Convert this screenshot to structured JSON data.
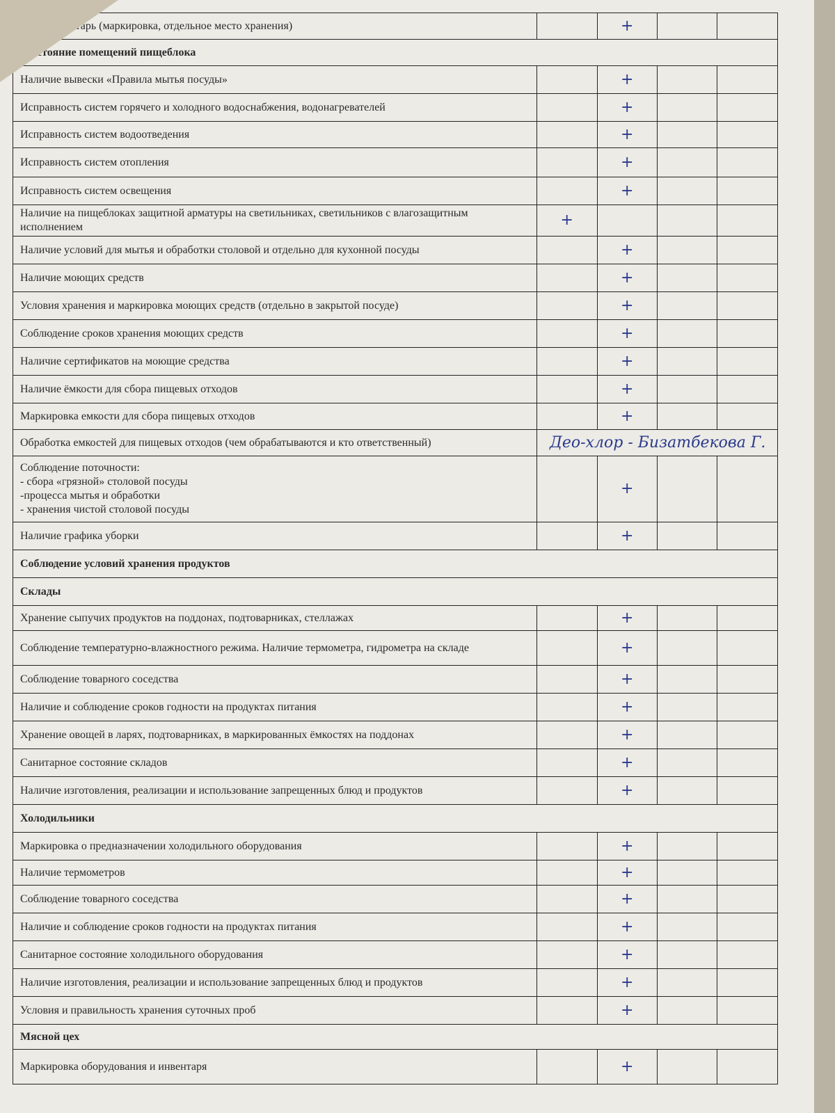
{
  "rows": [
    {
      "text": "…ый инвентарь (маркировка, отдельное место хранения)",
      "mark": 2,
      "h": 38
    },
    {
      "text": "…остояние помещений пищеблока",
      "header": true,
      "h": 38
    },
    {
      "text": "Наличие вывески «Правила мытья посуды»",
      "mark": 2,
      "h": 40
    },
    {
      "text": "Исправность систем горячего и холодного водоснабжения, водонагревателей",
      "mark": 2,
      "h": 40
    },
    {
      "text": "Исправность систем водоотведения",
      "mark": 2,
      "h": 38
    },
    {
      "text": "Исправность систем отопления",
      "mark": 2,
      "h": 42
    },
    {
      "text": "Исправность систем освещения",
      "mark": 2,
      "h": 40
    },
    {
      "text": "Наличие на пищеблоках защитной арматуры на светильниках, светильников с влагозащитным исполнением",
      "mark": 1,
      "h": 45
    },
    {
      "text": "Наличие условий для мытья и обработки столовой и отдельно для кухонной посуды",
      "mark": 2,
      "h": 40
    },
    {
      "text": "Наличие моющих средств",
      "mark": 2,
      "h": 40
    },
    {
      "text": "Условия хранения и маркировка моющих средств (отдельно в закрытой посуде)",
      "mark": 2,
      "h": 40
    },
    {
      "text": "Соблюдение сроков хранения моющих средств",
      "mark": 2,
      "h": 40
    },
    {
      "text": "Наличие сертификатов на моющие средства",
      "mark": 2,
      "h": 40
    },
    {
      "text": "Наличие ёмкости для сбора пищевых отходов",
      "mark": 2,
      "h": 40
    },
    {
      "text": "Маркировка емкости для сбора пищевых отходов",
      "mark": 2,
      "h": 38
    },
    {
      "text": "Обработка емкостей для пищевых отходов (чем обрабатываются и кто ответственный)",
      "handwritten": "Део-хлор - Бизатбекова Г.",
      "h": 38
    },
    {
      "text": "Соблюдение поточности:\n- сбора «грязной» столовой посуды\n-процесса мытья и обработки\n- хранения чистой столовой посуды",
      "mark": 2,
      "h": 95
    },
    {
      "text": "Наличие графика уборки",
      "mark": 2,
      "h": 40
    },
    {
      "text": "Соблюдение условий хранения продуктов",
      "header": true,
      "h": 40
    },
    {
      "text": "Склады",
      "header": true,
      "h": 40
    },
    {
      "text": "Хранение сыпучих продуктов на поддонах, подтоварниках, стеллажах",
      "mark": 2,
      "h": 36
    },
    {
      "text": "Соблюдение температурно-влажностного режима. Наличие термометра, гидрометра на складе",
      "mark": 2,
      "h": 50
    },
    {
      "text": "Соблюдение товарного соседства",
      "mark": 2,
      "h": 40
    },
    {
      "text": "Наличие и соблюдение сроков годности на продуктах питания",
      "mark": 2,
      "h": 40
    },
    {
      "text": "Хранение овощей в ларях, подтоварниках, в маркированных ёмкостях на поддонах",
      "mark": 2,
      "h": 40
    },
    {
      "text": "Санитарное состояние складов",
      "mark": 2,
      "h": 40
    },
    {
      "text": "Наличие изготовления, реализации и использование запрещенных блюд и продуктов",
      "mark": 2,
      "h": 40
    },
    {
      "text": "Холодильники",
      "header": true,
      "h": 40
    },
    {
      "text": "Маркировка о предназначении холодильного оборудования",
      "mark": 2,
      "h": 40
    },
    {
      "text": "Наличие термометров",
      "mark": 2,
      "h": 36
    },
    {
      "text": "Соблюдение товарного соседства",
      "mark": 2,
      "h": 40
    },
    {
      "text": "Наличие и соблюдение сроков годности на продуктах питания",
      "mark": 2,
      "h": 40
    },
    {
      "text": "Санитарное состояние холодильного оборудования",
      "mark": 2,
      "h": 40
    },
    {
      "text": "Наличие изготовления, реализации и использование запрещенных блюд и продуктов",
      "mark": 2,
      "h": 40
    },
    {
      "text": "Условия и правильность хранения суточных проб",
      "mark": 2,
      "h": 40
    },
    {
      "text": "Мясной цех",
      "header": true,
      "h": 36
    },
    {
      "text": "Маркировка оборудования и инвентаря",
      "mark": 2,
      "h": 50
    }
  ],
  "mark_symbol": "+",
  "colors": {
    "ink": "#2b3a8c",
    "paper": "#ecebe6"
  }
}
